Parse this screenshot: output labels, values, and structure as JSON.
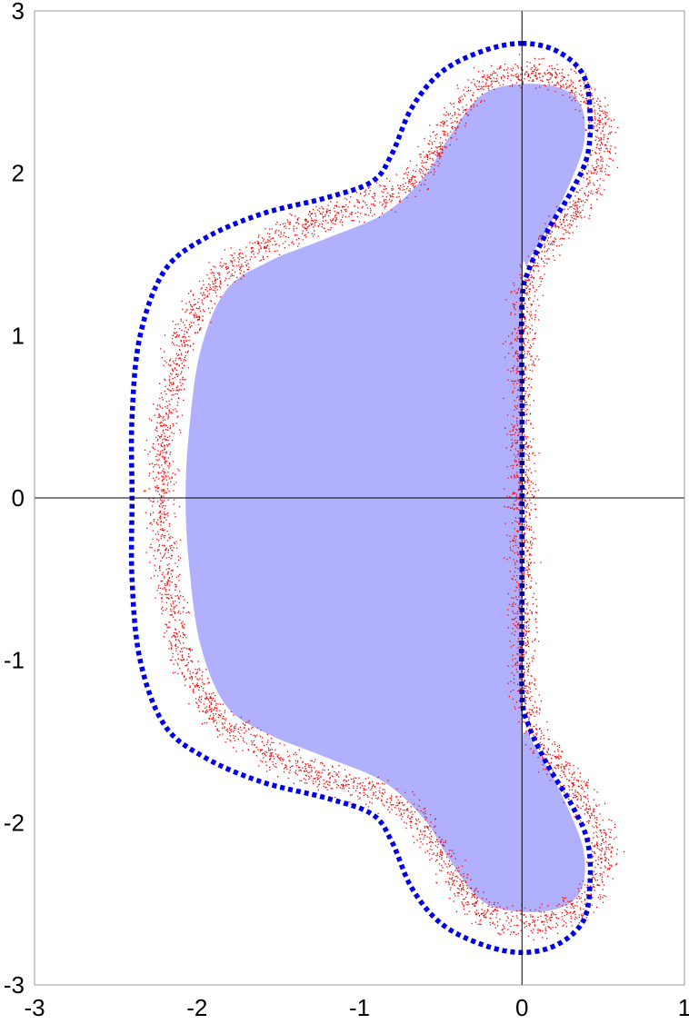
{
  "chart_data": {
    "type": "scatter",
    "title": "",
    "xlabel": "",
    "ylabel": "",
    "xlim": [
      -3,
      1
    ],
    "ylim": [
      -3,
      3
    ],
    "grid": false,
    "x_ticks": [
      -3,
      -2,
      -1,
      0,
      1
    ],
    "y_ticks": [
      -3,
      -2,
      -1,
      0,
      1,
      2,
      3
    ],
    "x_tick_labels": [
      "-3",
      "-2",
      "-1",
      "0",
      "1"
    ],
    "y_tick_labels": [
      "-3",
      "-2",
      "-1",
      "0",
      "1",
      "2",
      "3"
    ],
    "axes_lines": {
      "x": 0,
      "y": 0
    },
    "colors": {
      "filled_region": "#b0b0ff",
      "scatter_points": "#ff0000",
      "boundary_dotted": "#0000e6",
      "axes": "#000000",
      "frame": "#999999"
    },
    "series": [
      {
        "kind": "filled_region",
        "points": [
          [
            0.0,
            2.55
          ],
          [
            0.25,
            2.52
          ],
          [
            0.37,
            2.4
          ],
          [
            0.38,
            2.18
          ],
          [
            0.3,
            1.95
          ],
          [
            0.18,
            1.7
          ],
          [
            0.04,
            1.45
          ],
          [
            0.0,
            1.2
          ],
          [
            0.0,
            -1.2
          ],
          [
            0.04,
            -1.45
          ],
          [
            0.18,
            -1.7
          ],
          [
            0.3,
            -1.95
          ],
          [
            0.38,
            -2.18
          ],
          [
            0.37,
            -2.4
          ],
          [
            0.25,
            -2.52
          ],
          [
            0.0,
            -2.55
          ],
          [
            -0.25,
            -2.48
          ],
          [
            -0.45,
            -2.22
          ],
          [
            -0.6,
            -1.98
          ],
          [
            -0.85,
            -1.75
          ],
          [
            -1.2,
            -1.6
          ],
          [
            -1.55,
            -1.46
          ],
          [
            -1.82,
            -1.28
          ],
          [
            -1.98,
            -0.9
          ],
          [
            -2.05,
            -0.4
          ],
          [
            -2.07,
            0.0
          ],
          [
            -2.05,
            0.4
          ],
          [
            -1.98,
            0.9
          ],
          [
            -1.82,
            1.28
          ],
          [
            -1.55,
            1.46
          ],
          [
            -1.2,
            1.6
          ],
          [
            -0.85,
            1.75
          ],
          [
            -0.6,
            1.98
          ],
          [
            -0.45,
            2.22
          ],
          [
            -0.25,
            2.48
          ]
        ]
      },
      {
        "kind": "random_scatter_band",
        "point_count": 5200,
        "point_size": 1.3,
        "center_curve": [
          [
            0.0,
            2.62
          ],
          [
            0.22,
            2.6
          ],
          [
            0.42,
            2.46
          ],
          [
            0.52,
            2.22
          ],
          [
            0.45,
            1.95
          ],
          [
            0.28,
            1.72
          ],
          [
            0.12,
            1.52
          ],
          [
            0.03,
            1.32
          ],
          [
            0.0,
            1.1
          ],
          [
            0.0,
            0.6
          ],
          [
            0.0,
            0.0
          ],
          [
            0.0,
            -0.6
          ],
          [
            0.0,
            -1.1
          ],
          [
            0.03,
            -1.32
          ],
          [
            0.12,
            -1.52
          ],
          [
            0.28,
            -1.72
          ],
          [
            0.45,
            -1.95
          ],
          [
            0.52,
            -2.22
          ],
          [
            0.42,
            -2.46
          ],
          [
            0.22,
            -2.6
          ],
          [
            0.0,
            -2.62
          ],
          [
            -0.2,
            -2.6
          ],
          [
            -0.35,
            -2.45
          ],
          [
            -0.5,
            -2.2
          ],
          [
            -0.66,
            -1.95
          ],
          [
            -0.9,
            -1.82
          ],
          [
            -1.25,
            -1.72
          ],
          [
            -1.6,
            -1.55
          ],
          [
            -1.92,
            -1.32
          ],
          [
            -2.1,
            -0.95
          ],
          [
            -2.2,
            -0.45
          ],
          [
            -2.22,
            0.0
          ],
          [
            -2.2,
            0.45
          ],
          [
            -2.1,
            0.95
          ],
          [
            -1.92,
            1.32
          ],
          [
            -1.6,
            1.55
          ],
          [
            -1.25,
            1.72
          ],
          [
            -0.9,
            1.82
          ],
          [
            -0.66,
            1.95
          ],
          [
            -0.5,
            2.2
          ],
          [
            -0.35,
            2.45
          ],
          [
            -0.2,
            2.6
          ]
        ],
        "band_width": 0.13
      },
      {
        "kind": "dotted_boundary",
        "points": [
          [
            0.0,
            2.8
          ],
          [
            0.22,
            2.75
          ],
          [
            0.38,
            2.6
          ],
          [
            0.42,
            2.35
          ],
          [
            0.4,
            2.1
          ],
          [
            0.3,
            1.88
          ],
          [
            0.16,
            1.65
          ],
          [
            0.04,
            1.4
          ],
          [
            0.0,
            1.2
          ],
          [
            0.0,
            0.6
          ],
          [
            0.0,
            0.0
          ],
          [
            0.0,
            -0.6
          ],
          [
            0.0,
            -1.2
          ],
          [
            0.04,
            -1.4
          ],
          [
            0.16,
            -1.65
          ],
          [
            0.3,
            -1.88
          ],
          [
            0.4,
            -2.1
          ],
          [
            0.42,
            -2.35
          ],
          [
            0.38,
            -2.6
          ],
          [
            0.22,
            -2.75
          ],
          [
            0.0,
            -2.8
          ],
          [
            -0.25,
            -2.75
          ],
          [
            -0.5,
            -2.62
          ],
          [
            -0.68,
            -2.4
          ],
          [
            -0.8,
            -2.12
          ],
          [
            -0.92,
            -1.95
          ],
          [
            -1.2,
            -1.85
          ],
          [
            -1.6,
            -1.75
          ],
          [
            -1.95,
            -1.6
          ],
          [
            -2.2,
            -1.4
          ],
          [
            -2.35,
            -1.0
          ],
          [
            -2.4,
            -0.5
          ],
          [
            -2.4,
            0.0
          ],
          [
            -2.4,
            0.5
          ],
          [
            -2.35,
            1.0
          ],
          [
            -2.2,
            1.4
          ],
          [
            -1.95,
            1.6
          ],
          [
            -1.6,
            1.75
          ],
          [
            -1.2,
            1.85
          ],
          [
            -0.92,
            1.95
          ],
          [
            -0.8,
            2.12
          ],
          [
            -0.68,
            2.4
          ],
          [
            -0.5,
            2.62
          ],
          [
            -0.25,
            2.75
          ]
        ]
      }
    ]
  }
}
